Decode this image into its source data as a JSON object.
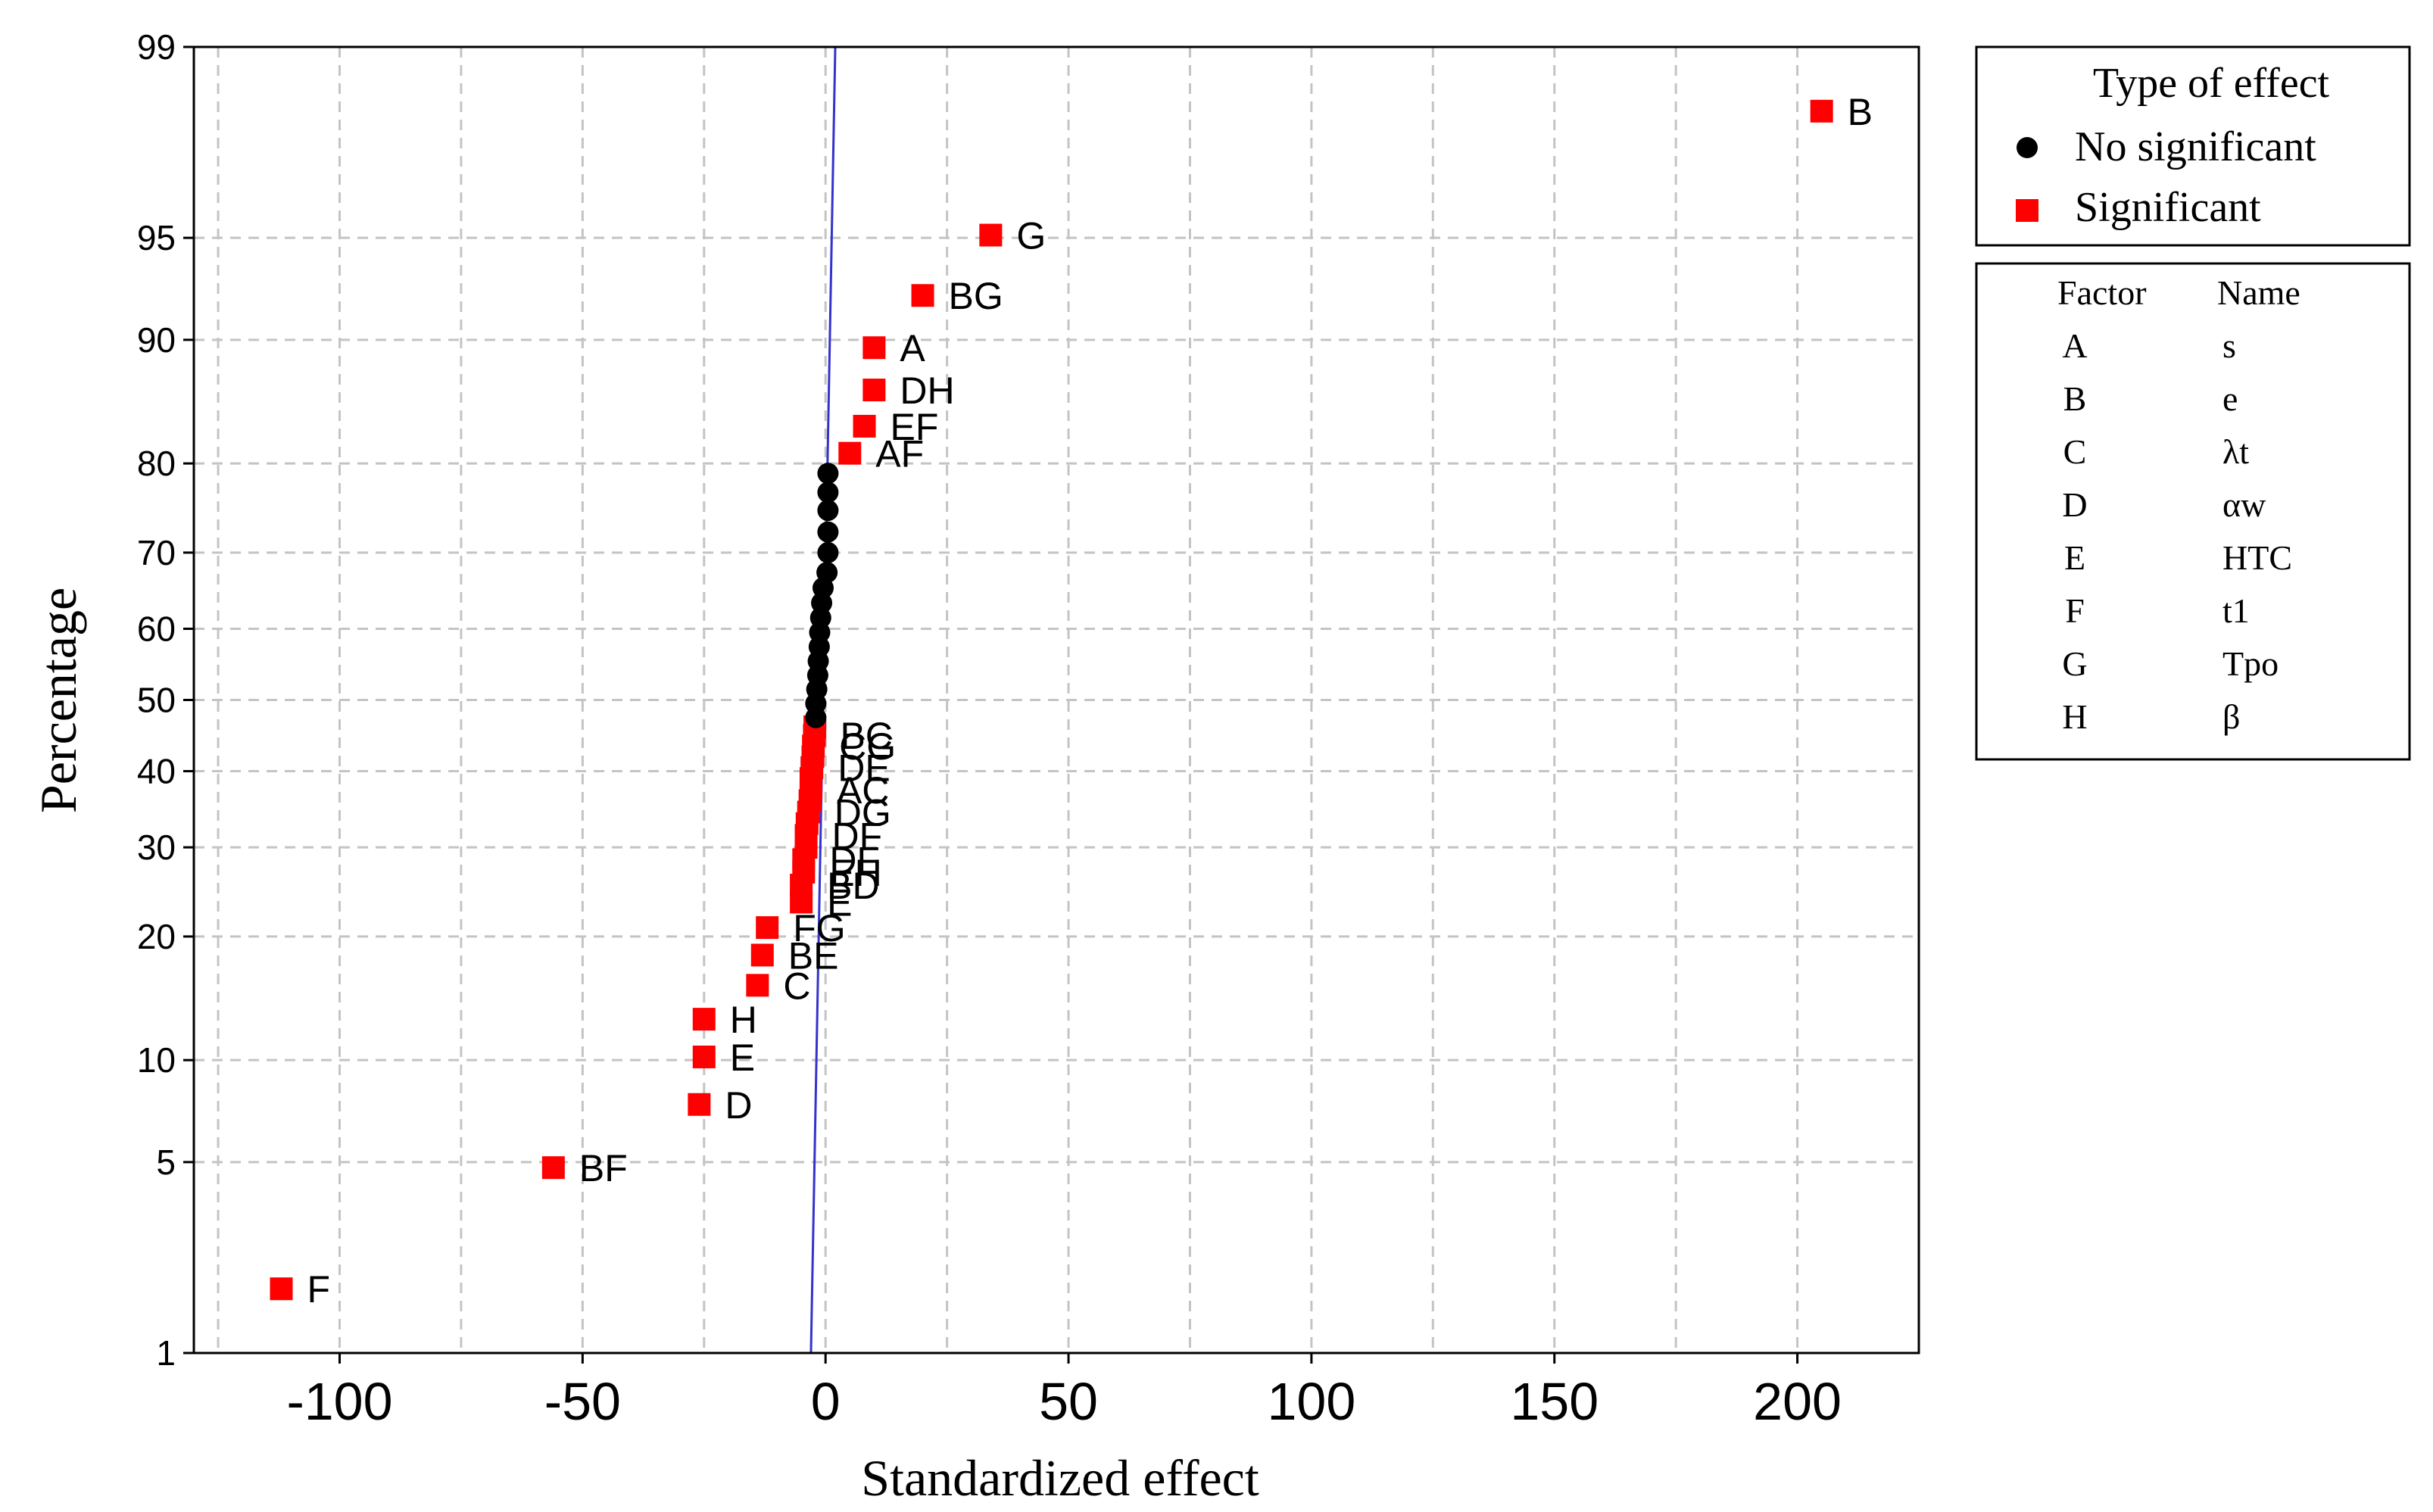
{
  "chart_data": {
    "type": "scatter",
    "title": "",
    "xlabel": "Standardized effect",
    "ylabel": "Percentage",
    "xlim": [
      -130,
      225
    ],
    "ylim": [
      1,
      99
    ],
    "y_scale": "normal-probability",
    "x_ticks": [
      -100,
      -50,
      0,
      50,
      100,
      150,
      200
    ],
    "y_ticks": [
      1,
      5,
      10,
      20,
      30,
      40,
      50,
      60,
      70,
      80,
      90,
      95,
      99
    ],
    "grid": true,
    "reference_line": {
      "x_at_y1": -3,
      "x_at_y99": 2,
      "color": "#3333cc"
    },
    "legend": {
      "placement": "top-right outside",
      "title": "Type of effect",
      "entries": [
        {
          "label": "No significant",
          "marker": "circle",
          "color": "#000000"
        },
        {
          "label": "Significant",
          "marker": "square",
          "color": "#ff0000"
        }
      ]
    },
    "factor_table": {
      "headers": [
        "Factor",
        "Name"
      ],
      "rows": [
        [
          "A",
          "s"
        ],
        [
          "B",
          "e"
        ],
        [
          "C",
          "λt"
        ],
        [
          "D",
          "αw"
        ],
        [
          "E",
          "HTC"
        ],
        [
          "F",
          "t1"
        ],
        [
          "G",
          "Tpo"
        ],
        [
          "H",
          "β"
        ]
      ]
    },
    "series": [
      {
        "name": "Significant",
        "marker": "square",
        "color": "#ff0000",
        "points": [
          {
            "x": -112,
            "y": 1.8,
            "label": "F"
          },
          {
            "x": -56,
            "y": 4.8,
            "label": "BF"
          },
          {
            "x": -26,
            "y": 7.5,
            "label": "D"
          },
          {
            "x": -25,
            "y": 10.2,
            "label": "E"
          },
          {
            "x": -25,
            "y": 12.8,
            "label": "H"
          },
          {
            "x": -14,
            "y": 15.5,
            "label": "C"
          },
          {
            "x": -13,
            "y": 18.2,
            "label": "BE"
          },
          {
            "x": -12,
            "y": 20.9,
            "label": "FG"
          },
          {
            "x": -5,
            "y": 23.6,
            "label": "E"
          },
          {
            "x": -5,
            "y": 25.5,
            "label": "BD"
          },
          {
            "x": -4.5,
            "y": 27.0,
            "label": "EH"
          },
          {
            "x": -4.5,
            "y": 28.5,
            "label": "DF"
          },
          {
            "x": -4,
            "y": 30.0,
            "label": ""
          },
          {
            "x": -4,
            "y": 31.5,
            "label": "DF"
          },
          {
            "x": -3.8,
            "y": 33.0,
            "label": ""
          },
          {
            "x": -3.5,
            "y": 34.5,
            "label": "DG"
          },
          {
            "x": -3.2,
            "y": 36.0,
            "label": ""
          },
          {
            "x": -3,
            "y": 37.5,
            "label": "AC"
          },
          {
            "x": -3,
            "y": 39.0,
            "label": ""
          },
          {
            "x": -2.8,
            "y": 40.5,
            "label": "DE"
          },
          {
            "x": -2.6,
            "y": 42.0,
            "label": ""
          },
          {
            "x": -2.5,
            "y": 43.5,
            "label": "CG"
          },
          {
            "x": -2.3,
            "y": 45.0,
            "label": "BC"
          },
          {
            "x": -2.2,
            "y": 46.2,
            "label": ""
          },
          {
            "x": 5,
            "y": 81,
            "label": "AF"
          },
          {
            "x": 8,
            "y": 83.5,
            "label": "EF"
          },
          {
            "x": 10,
            "y": 86.5,
            "label": "DH"
          },
          {
            "x": 10,
            "y": 89.5,
            "label": "A"
          },
          {
            "x": 20,
            "y": 92.5,
            "label": "BG"
          },
          {
            "x": 34,
            "y": 95.1,
            "label": "G"
          },
          {
            "x": 205,
            "y": 98.2,
            "label": "B"
          }
        ]
      },
      {
        "name": "No significant",
        "marker": "circle",
        "color": "#000000",
        "points": [
          {
            "x": -2,
            "y": 47.5
          },
          {
            "x": -2,
            "y": 49.5
          },
          {
            "x": -1.8,
            "y": 51.5
          },
          {
            "x": -1.6,
            "y": 53.5
          },
          {
            "x": -1.5,
            "y": 55.5
          },
          {
            "x": -1.3,
            "y": 57.5
          },
          {
            "x": -1.2,
            "y": 59.5
          },
          {
            "x": -1,
            "y": 61.5
          },
          {
            "x": -0.8,
            "y": 63.5
          },
          {
            "x": -0.5,
            "y": 65.5
          },
          {
            "x": 0.3,
            "y": 67.5
          },
          {
            "x": 0.5,
            "y": 70
          },
          {
            "x": 0.5,
            "y": 72.5
          },
          {
            "x": 0.5,
            "y": 75
          },
          {
            "x": 0.5,
            "y": 77
          },
          {
            "x": 0.5,
            "y": 79
          }
        ]
      }
    ]
  }
}
